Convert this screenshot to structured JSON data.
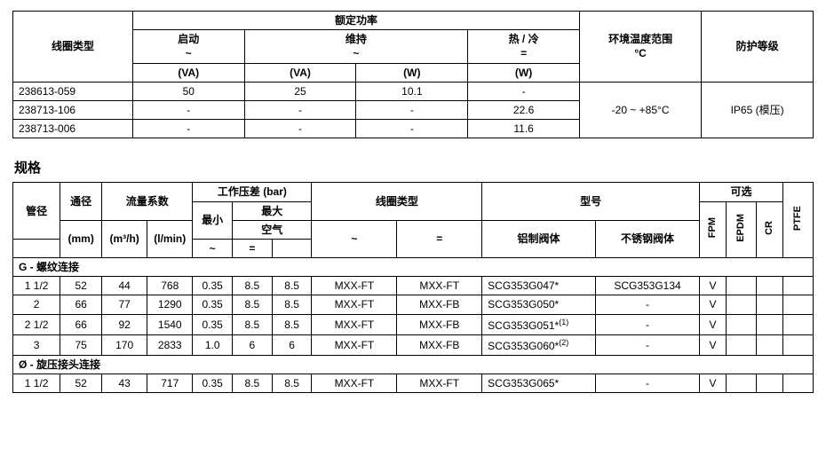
{
  "table1": {
    "headers": {
      "coilType": "线圈类型",
      "ratedPower": "额定功率",
      "start": "启动",
      "startSub": "~",
      "hold": "维持",
      "holdSub": "~",
      "hotCold": "热 / 冷",
      "hotColdSub": "=",
      "ambient": "环境温度范围",
      "ambientUnit": "°C",
      "protection": "防护等级",
      "VA": "(VA)",
      "W": "(W)"
    },
    "rows": [
      {
        "id": "238613-059",
        "startVA": "50",
        "holdVA": "25",
        "holdW": "10.1",
        "hcW": "-"
      },
      {
        "id": "238713-106",
        "startVA": "-",
        "holdVA": "-",
        "holdW": "-",
        "hcW": "22.6"
      },
      {
        "id": "238713-006",
        "startVA": "-",
        "holdVA": "-",
        "holdW": "-",
        "hcW": "11.6"
      }
    ],
    "ambientVal": "-20 ~ +85°C",
    "protectionVal": "IP65 (模压)"
  },
  "section2Title": "规格",
  "table2": {
    "headers": {
      "pipe": "管径",
      "dia": "通径",
      "flow": "流量系数",
      "opdp": "工作压差 (bar)",
      "max": "最大",
      "air": "空气",
      "min": "最小",
      "coil": "线圈类型",
      "model": "型号",
      "optional": "可选",
      "mm": "(mm)",
      "m3h": "(m³/h)",
      "lmin": "(l/min)",
      "tilde": "~",
      "eq": "=",
      "alBody": "铝制阀体",
      "ssBody": "不锈钢阀体",
      "fpm": "FPM",
      "epdm": "EPDM",
      "cr": "CR",
      "ptfe": "PTFE"
    },
    "group1": "G - 螺纹连接",
    "group2": "Ø - 旋压接头连接",
    "rows1": [
      {
        "pipe": "1 1/2",
        "mm": "52",
        "m3h": "44",
        "lmin": "768",
        "min": "0.35",
        "maxa": "8.5",
        "maxb": "8.5",
        "coilA": "MXX-FT",
        "coilB": "MXX-FT",
        "al": "SCG353G047*",
        "ss": "SCG353G134",
        "fpm": "V",
        "epdm": "",
        "cr": "",
        "ptfe": ""
      },
      {
        "pipe": "2",
        "mm": "66",
        "m3h": "77",
        "lmin": "1290",
        "min": "0.35",
        "maxa": "8.5",
        "maxb": "8.5",
        "coilA": "MXX-FT",
        "coilB": "MXX-FB",
        "al": "SCG353G050*",
        "ss": "-",
        "fpm": "V",
        "epdm": "",
        "cr": "",
        "ptfe": ""
      },
      {
        "pipe": "2 1/2",
        "mm": "66",
        "m3h": "92",
        "lmin": "1540",
        "min": "0.35",
        "maxa": "8.5",
        "maxb": "8.5",
        "coilA": "MXX-FT",
        "coilB": "MXX-FB",
        "al": "SCG353G051*<sup>(1)</sup>",
        "ss": "-",
        "fpm": "V",
        "epdm": "",
        "cr": "",
        "ptfe": ""
      },
      {
        "pipe": "3",
        "mm": "75",
        "m3h": "170",
        "lmin": "2833",
        "min": "1.0",
        "maxa": "6",
        "maxb": "6",
        "coilA": "MXX-FT",
        "coilB": "MXX-FB",
        "al": "SCG353G060*<sup>(2)</sup>",
        "ss": "-",
        "fpm": "V",
        "epdm": "",
        "cr": "",
        "ptfe": ""
      }
    ],
    "rows2": [
      {
        "pipe": "1 1/2",
        "mm": "52",
        "m3h": "43",
        "lmin": "717",
        "min": "0.35",
        "maxa": "8.5",
        "maxb": "8.5",
        "coilA": "MXX-FT",
        "coilB": "MXX-FT",
        "al": "SCG353G065*",
        "ss": "-",
        "fpm": "V",
        "epdm": "",
        "cr": "",
        "ptfe": ""
      }
    ]
  }
}
